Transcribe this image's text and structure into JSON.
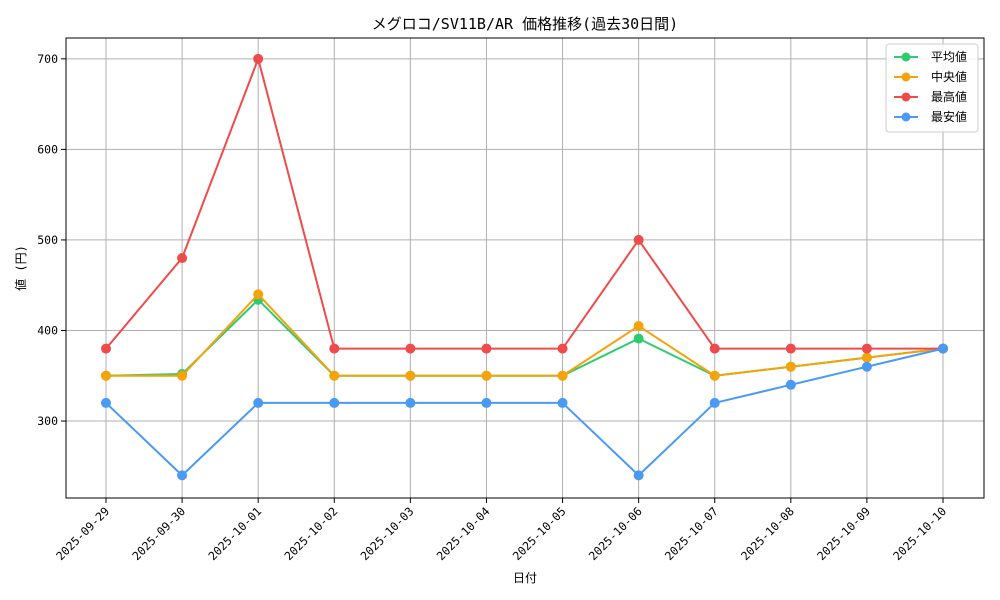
{
  "chart_data": {
    "type": "line",
    "title": "メグロコ/SV11B/AR 価格推移(過去30日間)",
    "xlabel": "日付",
    "ylabel": "値 (円)",
    "categories": [
      "2025-09-29",
      "2025-09-30",
      "2025-10-01",
      "2025-10-02",
      "2025-10-03",
      "2025-10-04",
      "2025-10-05",
      "2025-10-06",
      "2025-10-07",
      "2025-10-08",
      "2025-10-09",
      "2025-10-10"
    ],
    "ylim": [
      215,
      723
    ],
    "yticks": [
      300,
      400,
      500,
      600,
      700
    ],
    "grid": true,
    "legend_position": "top-right",
    "series": [
      {
        "name": "平均値",
        "color": "#2ecc71",
        "values": [
          350,
          352,
          434,
          350,
          350,
          350,
          350,
          391,
          350,
          360,
          370,
          380
        ]
      },
      {
        "name": "中央値",
        "color": "#f5a30a",
        "values": [
          350,
          350,
          440,
          350,
          350,
          350,
          350,
          405,
          350,
          360,
          370,
          380
        ]
      },
      {
        "name": "最高値",
        "color": "#ef4b4b",
        "values": [
          380,
          480,
          700,
          380,
          380,
          380,
          380,
          500,
          380,
          380,
          380,
          380
        ]
      },
      {
        "name": "最安値",
        "color": "#4a9af5",
        "values": [
          320,
          240,
          320,
          320,
          320,
          320,
          320,
          240,
          320,
          340,
          360,
          380
        ]
      }
    ]
  }
}
